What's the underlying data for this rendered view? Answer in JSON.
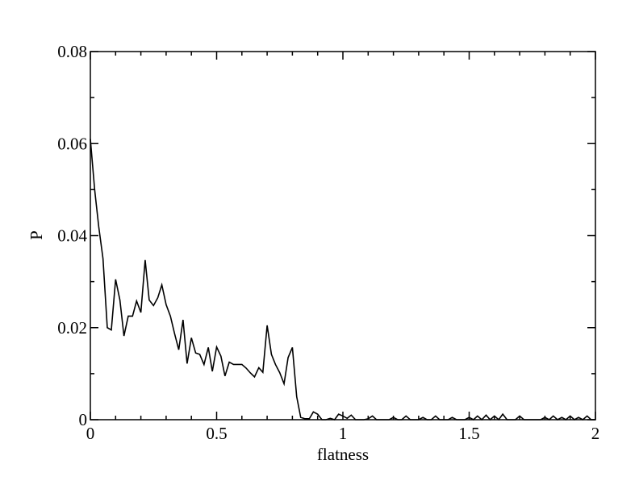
{
  "chart_data": {
    "type": "line",
    "title": "",
    "xlabel": "flatness",
    "ylabel": "P",
    "xlim": [
      0,
      2
    ],
    "ylim": [
      0,
      0.08
    ],
    "xticks": [
      0,
      0.5,
      1,
      1.5,
      2
    ],
    "xtick_labels": [
      "0",
      "0.5",
      "1",
      "1.5",
      "2"
    ],
    "yticks": [
      0,
      0.02,
      0.04,
      0.06,
      0.08
    ],
    "ytick_labels": [
      "0",
      "0.02",
      "0.04",
      "0.06",
      "0.08"
    ],
    "grid": false,
    "line_color": "#000000",
    "series": [
      {
        "x": [
          0.0,
          0.017,
          0.033,
          0.05,
          0.067,
          0.083,
          0.1,
          0.117,
          0.133,
          0.15,
          0.167,
          0.183,
          0.2,
          0.217,
          0.233,
          0.25,
          0.267,
          0.283,
          0.3,
          0.317,
          0.333,
          0.35,
          0.367,
          0.383,
          0.4,
          0.417,
          0.433,
          0.45,
          0.467,
          0.483,
          0.5,
          0.517,
          0.533,
          0.55,
          0.567,
          0.583,
          0.6,
          0.617,
          0.633,
          0.65,
          0.667,
          0.683,
          0.7,
          0.717,
          0.733,
          0.75,
          0.767,
          0.783,
          0.8,
          0.817,
          0.833,
          0.85,
          0.867,
          0.883,
          0.9,
          0.917,
          0.933,
          0.95,
          0.967,
          0.983,
          1.0,
          1.017,
          1.033,
          1.05,
          1.067,
          1.083,
          1.1,
          1.117,
          1.133,
          1.15,
          1.167,
          1.183,
          1.2,
          1.217,
          1.233,
          1.25,
          1.267,
          1.283,
          1.3,
          1.317,
          1.333,
          1.35,
          1.367,
          1.383,
          1.4,
          1.417,
          1.433,
          1.45,
          1.467,
          1.483,
          1.5,
          1.517,
          1.533,
          1.55,
          1.567,
          1.583,
          1.6,
          1.617,
          1.633,
          1.65,
          1.667,
          1.683,
          1.7,
          1.717,
          1.733,
          1.75,
          1.767,
          1.783,
          1.8,
          1.817,
          1.833,
          1.85,
          1.867,
          1.883,
          1.9,
          1.917,
          1.933,
          1.95,
          1.967,
          1.983,
          2.0
        ],
        "y": [
          0.061,
          0.05,
          0.042,
          0.035,
          0.02,
          0.0195,
          0.0305,
          0.026,
          0.0182,
          0.0225,
          0.0225,
          0.0258,
          0.0233,
          0.0347,
          0.026,
          0.0248,
          0.0265,
          0.0293,
          0.025,
          0.0225,
          0.0188,
          0.0152,
          0.0217,
          0.0122,
          0.0178,
          0.0145,
          0.0142,
          0.012,
          0.0157,
          0.0105,
          0.0158,
          0.0138,
          0.0095,
          0.0125,
          0.012,
          0.012,
          0.012,
          0.0112,
          0.0102,
          0.0093,
          0.0113,
          0.0103,
          0.0205,
          0.0142,
          0.012,
          0.0102,
          0.0078,
          0.0135,
          0.0157,
          0.005,
          0.0005,
          0.0002,
          0.0002,
          0.0017,
          0.0012,
          0.0,
          0.0,
          0.0003,
          0.0,
          0.0012,
          0.0008,
          0.0003,
          0.001,
          0.0,
          0.0,
          0.0,
          0.0002,
          0.0008,
          0.0,
          0.0,
          0.0,
          0.0,
          0.0005,
          0.0,
          0.0,
          0.0008,
          0.0,
          0.0,
          0.0,
          0.0005,
          0.0,
          0.0,
          0.0008,
          0.0,
          0.0,
          0.0,
          0.0005,
          0.0,
          0.0,
          0.0,
          0.0005,
          0.0,
          0.0008,
          0.0,
          0.001,
          0.0,
          0.0008,
          0.0,
          0.0012,
          0.0,
          0.0,
          0.0,
          0.0008,
          0.0,
          0.0,
          0.0,
          0.0,
          0.0,
          0.0005,
          0.0,
          0.0008,
          0.0,
          0.0005,
          0.0,
          0.0008,
          0.0,
          0.0005,
          0.0,
          0.0008,
          0.0,
          0.0
        ]
      }
    ]
  }
}
